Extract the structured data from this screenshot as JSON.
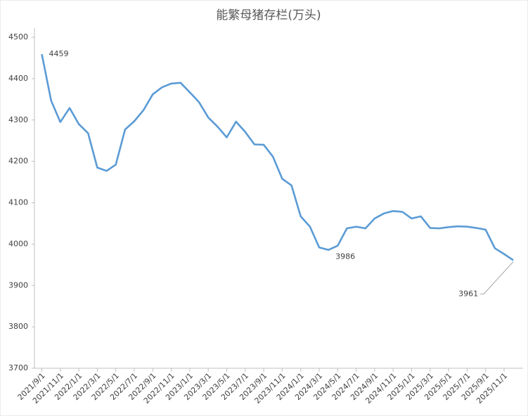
{
  "chart_data": {
    "type": "line",
    "title": "能繁母猪存栏(万头)",
    "categories": [
      "2021/9/1",
      null,
      "2021/11/1",
      null,
      "2022/1/1",
      null,
      "2022/3/1",
      null,
      "2022/5/1",
      null,
      "2022/7/1",
      null,
      "2022/9/1",
      null,
      "2022/11/1",
      null,
      "2023/1/1",
      null,
      "2023/3/1",
      null,
      "2023/5/1",
      null,
      "2023/7/1",
      null,
      "2023/9/1",
      null,
      "2023/11/1",
      null,
      "2024/1/1",
      null,
      "2024/3/1",
      null,
      "2024/5/1",
      null,
      "2024/7/1",
      null,
      "2024/9/1",
      null,
      "2024/11/1",
      null,
      "2025/1/1",
      null,
      "2025/3/1",
      null,
      "2025/5/1",
      null,
      "2025/7/1",
      null,
      "2025/9/1",
      null,
      "2025/11/1",
      null
    ],
    "series": [
      {
        "name": "能繁母猪存栏",
        "color": "#5b9bd5",
        "values": [
          4459,
          4347,
          4295,
          4329,
          4290,
          4268,
          4185,
          4177,
          4192,
          4277,
          4297,
          4324,
          4362,
          4379,
          4388,
          4390,
          4367,
          4343,
          4306,
          4284,
          4258,
          4296,
          4271,
          4241,
          4240,
          4211,
          4158,
          4142,
          4067,
          4042,
          3992,
          3986,
          3996,
          4038,
          4042,
          4038,
          4062,
          4074,
          4080,
          4078,
          4062,
          4067,
          4039,
          4038,
          4041,
          4043,
          4042,
          4039,
          4035,
          3990,
          3976,
          3961
        ],
        "value_labels": [
          "4459",
          null,
          null,
          null,
          null,
          null,
          null,
          null,
          null,
          null,
          null,
          null,
          null,
          null,
          null,
          null,
          null,
          null,
          null,
          null,
          null,
          null,
          null,
          null,
          null,
          null,
          null,
          null,
          null,
          null,
          null,
          "3986",
          null,
          null,
          null,
          null,
          null,
          null,
          null,
          null,
          null,
          null,
          null,
          null,
          null,
          null,
          null,
          null,
          null,
          null,
          null,
          "3961"
        ]
      }
    ],
    "ylim": [
      3700,
      4500
    ],
    "yticks": [
      3700,
      3800,
      3900,
      4000,
      4100,
      4200,
      4300,
      4400,
      4500
    ],
    "grid": false
  }
}
